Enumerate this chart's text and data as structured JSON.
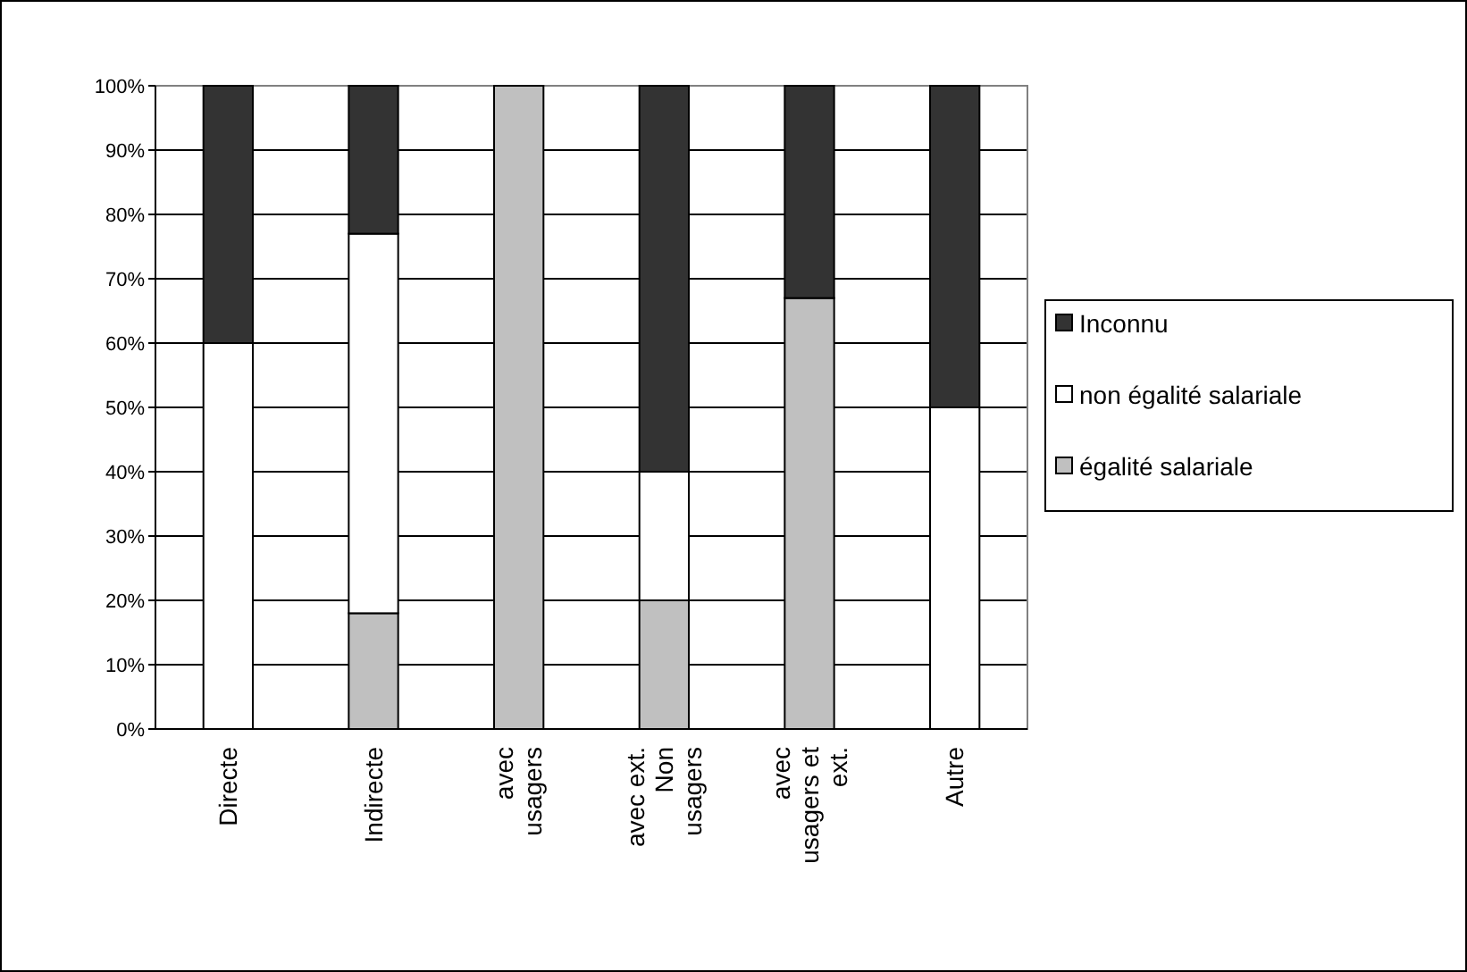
{
  "chart_data": {
    "type": "bar",
    "stacked": true,
    "categories": [
      "Directe",
      "Indirecte",
      "avec usagers",
      "avec ext. Non usagers",
      "avec usagers et ext.",
      "Autre"
    ],
    "series": [
      {
        "name": "égalité salariale",
        "color": "#c0c0c0",
        "values": [
          0,
          18,
          100,
          20,
          67,
          0
        ]
      },
      {
        "name": "non égalité salariale",
        "color": "#ffffff",
        "values": [
          60,
          59,
          0,
          20,
          0,
          50
        ]
      },
      {
        "name": "Inconnu",
        "color": "#333333",
        "values": [
          40,
          23,
          0,
          60,
          33,
          50
        ]
      }
    ],
    "ylim": [
      0,
      100
    ],
    "yticks": [
      {
        "value": 0,
        "label": "0%"
      },
      {
        "value": 10,
        "label": "10%"
      },
      {
        "value": 20,
        "label": "20%"
      },
      {
        "value": 30,
        "label": "30%"
      },
      {
        "value": 40,
        "label": "40%"
      },
      {
        "value": 50,
        "label": "50%"
      },
      {
        "value": 60,
        "label": "60%"
      },
      {
        "value": 70,
        "label": "70%"
      },
      {
        "value": 80,
        "label": "80%"
      },
      {
        "value": 90,
        "label": "90%"
      },
      {
        "value": 100,
        "label": "100%"
      }
    ],
    "grid": "y",
    "legend": "right"
  }
}
